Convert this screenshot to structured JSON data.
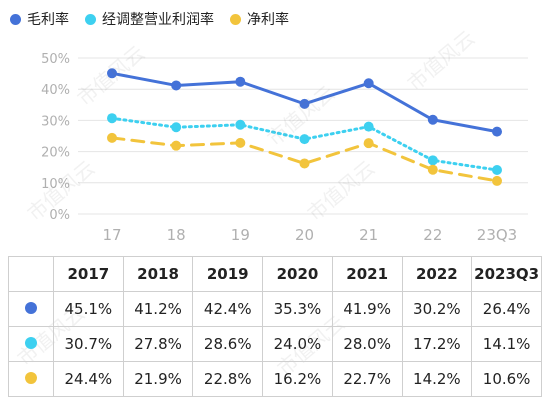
{
  "legend": [
    {
      "label": "毛利率",
      "color": "#4472d8"
    },
    {
      "label": "经调整营业利润率",
      "color": "#3dd0f0"
    },
    {
      "label": "净利率",
      "color": "#f2c43c"
    }
  ],
  "chart_data": {
    "type": "line",
    "categories": [
      "17",
      "18",
      "19",
      "20",
      "21",
      "22",
      "23Q3"
    ],
    "y_ticks": [
      "0%",
      "10%",
      "20%",
      "30%",
      "40%",
      "50%"
    ],
    "ylim": [
      0,
      50
    ],
    "grid": true,
    "legend_position": "top-left",
    "series": [
      {
        "name": "毛利率",
        "color": "#4472d8",
        "style": "solid",
        "values": [
          45.1,
          41.2,
          42.4,
          35.3,
          41.9,
          30.2,
          26.4
        ]
      },
      {
        "name": "经调整营业利润率",
        "color": "#3dd0f0",
        "style": "dotted",
        "values": [
          30.7,
          27.8,
          28.6,
          24.0,
          28.0,
          17.2,
          14.1
        ]
      },
      {
        "name": "净利率",
        "color": "#f2c43c",
        "style": "dashed",
        "values": [
          24.4,
          21.9,
          22.8,
          16.2,
          22.7,
          14.2,
          10.6
        ]
      }
    ]
  },
  "table": {
    "headers": [
      "2017",
      "2018",
      "2019",
      "2020",
      "2021",
      "2022",
      "2023Q3"
    ],
    "rows": [
      {
        "color": "#4472d8",
        "cells": [
          "45.1%",
          "41.2%",
          "42.4%",
          "35.3%",
          "41.9%",
          "30.2%",
          "26.4%"
        ]
      },
      {
        "color": "#3dd0f0",
        "cells": [
          "30.7%",
          "27.8%",
          "28.6%",
          "24.0%",
          "28.0%",
          "17.2%",
          "14.1%"
        ]
      },
      {
        "color": "#f2c43c",
        "cells": [
          "24.4%",
          "21.9%",
          "22.8%",
          "16.2%",
          "22.7%",
          "14.2%",
          "10.6%"
        ]
      }
    ]
  },
  "watermark": "市值风云"
}
